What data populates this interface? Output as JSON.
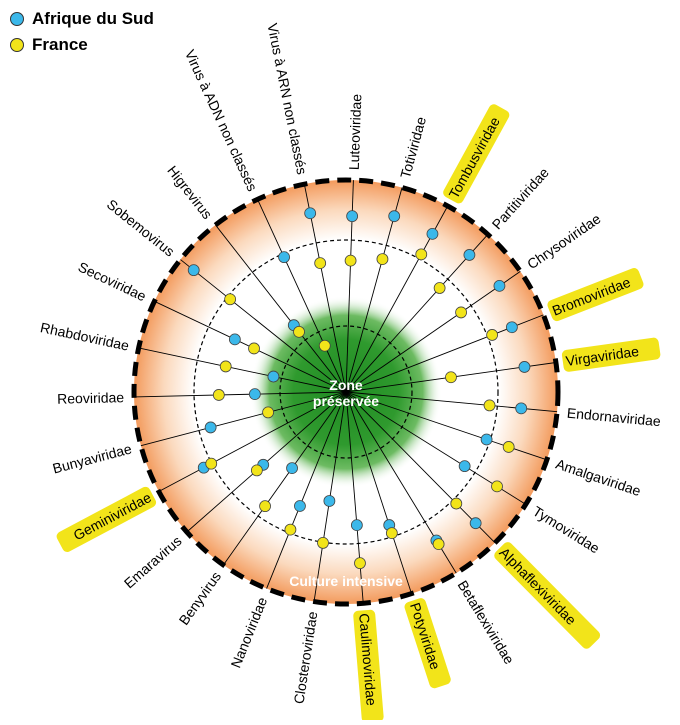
{
  "legend": {
    "items": [
      {
        "label": "Afrique du Sud",
        "color": "#3bb8ea"
      },
      {
        "label": "France",
        "color": "#f2e41a"
      }
    ]
  },
  "center": {
    "line1": "Zone",
    "line2": "préservée"
  },
  "outer_label": "Culture intensive",
  "colors": {
    "south_africa": "#3bb8ea",
    "france": "#f2e41a",
    "highlight": "#f2e41a",
    "preserved": "#2b8a2b",
    "intensive": "#f39a5c"
  },
  "families": [
    {
      "name": "Luteoviridae",
      "highlight": false,
      "sa": 0.83,
      "fr": 0.62
    },
    {
      "name": "Totiviridae",
      "highlight": false,
      "sa": 0.86,
      "fr": 0.65
    },
    {
      "name": "Tombusviridae",
      "highlight": true,
      "sa": 0.85,
      "fr": 0.74
    },
    {
      "name": "Partitiviridae",
      "highlight": false,
      "sa": 0.87,
      "fr": 0.66
    },
    {
      "name": "Chrysoviridae",
      "highlight": false,
      "sa": 0.88,
      "fr": 0.66
    },
    {
      "name": "Bromoviridae",
      "highlight": true,
      "sa": 0.84,
      "fr": 0.74
    },
    {
      "name": "Virgaviridae",
      "highlight": true,
      "sa": 0.85,
      "fr": 0.5
    },
    {
      "name": "Endornaviridae",
      "highlight": false,
      "sa": 0.83,
      "fr": 0.68
    },
    {
      "name": "Amalgaviridae",
      "highlight": false,
      "sa": 0.7,
      "fr": 0.81
    },
    {
      "name": "Tymoviridae",
      "highlight": false,
      "sa": 0.66,
      "fr": 0.84
    },
    {
      "name": "Alphaflexiviridae",
      "highlight": true,
      "sa": 0.87,
      "fr": 0.74
    },
    {
      "name": "Betaflexiviridae",
      "highlight": false,
      "sa": 0.82,
      "fr": 0.84
    },
    {
      "name": "Potyviridae",
      "highlight": true,
      "sa": 0.66,
      "fr": 0.7
    },
    {
      "name": "Caulimoviridae",
      "highlight": true,
      "sa": 0.63,
      "fr": 0.81
    },
    {
      "name": "Closteroviridae",
      "highlight": false,
      "sa": 0.52,
      "fr": 0.72
    },
    {
      "name": "Nanoviridae",
      "highlight": false,
      "sa": 0.58,
      "fr": 0.7
    },
    {
      "name": "Benyvirus",
      "highlight": false,
      "sa": 0.44,
      "fr": 0.66
    },
    {
      "name": "Emaravirus",
      "highlight": false,
      "sa": 0.52,
      "fr": 0.56
    },
    {
      "name": "Geminiviridae",
      "highlight": true,
      "sa": 0.76,
      "fr": 0.72
    },
    {
      "name": "Bunyaviridae",
      "highlight": false,
      "sa": 0.66,
      "fr": 0.38
    },
    {
      "name": "Reoviridae",
      "highlight": false,
      "sa": 0.43,
      "fr": 0.6
    },
    {
      "name": "Rhabdoviridae",
      "highlight": false,
      "sa": 0.35,
      "fr": 0.58
    },
    {
      "name": "Secoviridae",
      "highlight": false,
      "sa": 0.58,
      "fr": 0.48
    },
    {
      "name": "Sobemovirus",
      "highlight": false,
      "sa": 0.92,
      "fr": 0.7
    },
    {
      "name": "Higrevirus",
      "highlight": false,
      "sa": 0.4,
      "fr": 0.36
    },
    {
      "name": "Virus à ADN non classés",
      "highlight": false,
      "sa": 0.7,
      "fr": 0.24
    },
    {
      "name": "Virus à ARN non classés",
      "highlight": false,
      "sa": 0.86,
      "fr": 0.62
    }
  ]
}
